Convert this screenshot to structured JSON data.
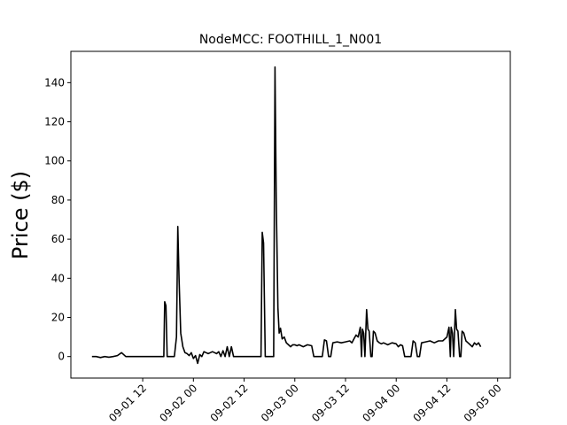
{
  "chart_data": {
    "type": "line",
    "title": "NodeMCC: FOOTHILL_1_N001",
    "xlabel": "",
    "ylabel": "Price ($)",
    "x_unit": "hours since 09-01 00",
    "xlim": [
      -5,
      99
    ],
    "ylim": [
      -11,
      156
    ],
    "grid": false,
    "line_color": "#000000",
    "x_ticks": [
      {
        "value": 12,
        "label": "09-01 12"
      },
      {
        "value": 24,
        "label": "09-02 00"
      },
      {
        "value": 36,
        "label": "09-02 12"
      },
      {
        "value": 48,
        "label": "09-03 00"
      },
      {
        "value": 60,
        "label": "09-03 12"
      },
      {
        "value": 72,
        "label": "09-04 00"
      },
      {
        "value": 84,
        "label": "09-04 12"
      },
      {
        "value": 96,
        "label": "09-05 00"
      }
    ],
    "y_ticks": [
      0,
      20,
      40,
      60,
      80,
      100,
      120,
      140
    ],
    "series": [
      {
        "points": [
          [
            0,
            0
          ],
          [
            1,
            0
          ],
          [
            2,
            -0.5
          ],
          [
            3,
            0
          ],
          [
            4,
            -0.3
          ],
          [
            5,
            0
          ],
          [
            6,
            0.5
          ],
          [
            7,
            2
          ],
          [
            8,
            0
          ],
          [
            9,
            0
          ],
          [
            10,
            0
          ],
          [
            11,
            0
          ],
          [
            12,
            0
          ],
          [
            13,
            0
          ],
          [
            14,
            0
          ],
          [
            15,
            0
          ],
          [
            16,
            0
          ],
          [
            17,
            0
          ],
          [
            17.2,
            28
          ],
          [
            17.5,
            26
          ],
          [
            17.8,
            0
          ],
          [
            18,
            0
          ],
          [
            19,
            0
          ],
          [
            19.5,
            0
          ],
          [
            20,
            10
          ],
          [
            20.3,
            66.5
          ],
          [
            20.6,
            40
          ],
          [
            21,
            12
          ],
          [
            21.5,
            5
          ],
          [
            22,
            2
          ],
          [
            22.5,
            1.5
          ],
          [
            23,
            0.5
          ],
          [
            23.5,
            2
          ],
          [
            24,
            -1
          ],
          [
            24.5,
            0.5
          ],
          [
            25,
            -3.5
          ],
          [
            25.5,
            1
          ],
          [
            26,
            0
          ],
          [
            26.5,
            2.5
          ],
          [
            27,
            2
          ],
          [
            27.5,
            1.5
          ],
          [
            28,
            2
          ],
          [
            28.5,
            2.5
          ],
          [
            29,
            2
          ],
          [
            29.5,
            1.5
          ],
          [
            30,
            2.5
          ],
          [
            30.5,
            0
          ],
          [
            31,
            3
          ],
          [
            31.5,
            0
          ],
          [
            32,
            5
          ],
          [
            32.5,
            0
          ],
          [
            33,
            5
          ],
          [
            33.5,
            0
          ],
          [
            34,
            0
          ],
          [
            35,
            0
          ],
          [
            36,
            0
          ],
          [
            37,
            0
          ],
          [
            38,
            0
          ],
          [
            39,
            0
          ],
          [
            40,
            0
          ],
          [
            40.3,
            63.5
          ],
          [
            40.6,
            58
          ],
          [
            41,
            0
          ],
          [
            42,
            0
          ],
          [
            43,
            0
          ],
          [
            43.3,
            148
          ],
          [
            43.6,
            80
          ],
          [
            44,
            25
          ],
          [
            44.3,
            12
          ],
          [
            44.6,
            14.5
          ],
          [
            45,
            9
          ],
          [
            45.5,
            10
          ],
          [
            46,
            7
          ],
          [
            46.5,
            6
          ],
          [
            47,
            5
          ],
          [
            47.5,
            6
          ],
          [
            48,
            6
          ],
          [
            48.5,
            5.5
          ],
          [
            49,
            6
          ],
          [
            50,
            5
          ],
          [
            51,
            6
          ],
          [
            52,
            5.5
          ],
          [
            52.5,
            0
          ],
          [
            53,
            0
          ],
          [
            53.5,
            0
          ],
          [
            54,
            0
          ],
          [
            54.5,
            0
          ],
          [
            55,
            8.5
          ],
          [
            55.5,
            8
          ],
          [
            56,
            0
          ],
          [
            56.5,
            0
          ],
          [
            57,
            7
          ],
          [
            58,
            7.5
          ],
          [
            59,
            7
          ],
          [
            60,
            7.5
          ],
          [
            61,
            8
          ],
          [
            61.5,
            7
          ],
          [
            62,
            9
          ],
          [
            62.5,
            11
          ],
          [
            63,
            10
          ],
          [
            63.5,
            15
          ],
          [
            63.8,
            0
          ],
          [
            64,
            14
          ],
          [
            64.3,
            12
          ],
          [
            64.6,
            0
          ],
          [
            65,
            24
          ],
          [
            65.3,
            14
          ],
          [
            65.6,
            13
          ],
          [
            66,
            0
          ],
          [
            66.3,
            0
          ],
          [
            66.6,
            13
          ],
          [
            67,
            12
          ],
          [
            67.5,
            8
          ],
          [
            68,
            7
          ],
          [
            68.5,
            6.5
          ],
          [
            69,
            7
          ],
          [
            70,
            6
          ],
          [
            71,
            7
          ],
          [
            72,
            6.5
          ],
          [
            72.5,
            5
          ],
          [
            73,
            6
          ],
          [
            73.5,
            5.5
          ],
          [
            74,
            0
          ],
          [
            74.5,
            0
          ],
          [
            75,
            0
          ],
          [
            75.5,
            0
          ],
          [
            76,
            8
          ],
          [
            76.5,
            7
          ],
          [
            77,
            0
          ],
          [
            77.5,
            0
          ],
          [
            78,
            7
          ],
          [
            79,
            7.5
          ],
          [
            80,
            8
          ],
          [
            81,
            7
          ],
          [
            82,
            8
          ],
          [
            83,
            8
          ],
          [
            83.5,
            9
          ],
          [
            84,
            10
          ],
          [
            84.5,
            15
          ],
          [
            84.8,
            0
          ],
          [
            85,
            15
          ],
          [
            85.3,
            12
          ],
          [
            85.6,
            0
          ],
          [
            86,
            24
          ],
          [
            86.3,
            14
          ],
          [
            86.6,
            13
          ],
          [
            87,
            0
          ],
          [
            87.3,
            0
          ],
          [
            87.6,
            13
          ],
          [
            88,
            12
          ],
          [
            88.5,
            8
          ],
          [
            89,
            7
          ],
          [
            89.5,
            6
          ],
          [
            90,
            5
          ],
          [
            90.5,
            7
          ],
          [
            91,
            6
          ],
          [
            91.5,
            7
          ],
          [
            92,
            5
          ]
        ]
      }
    ]
  }
}
